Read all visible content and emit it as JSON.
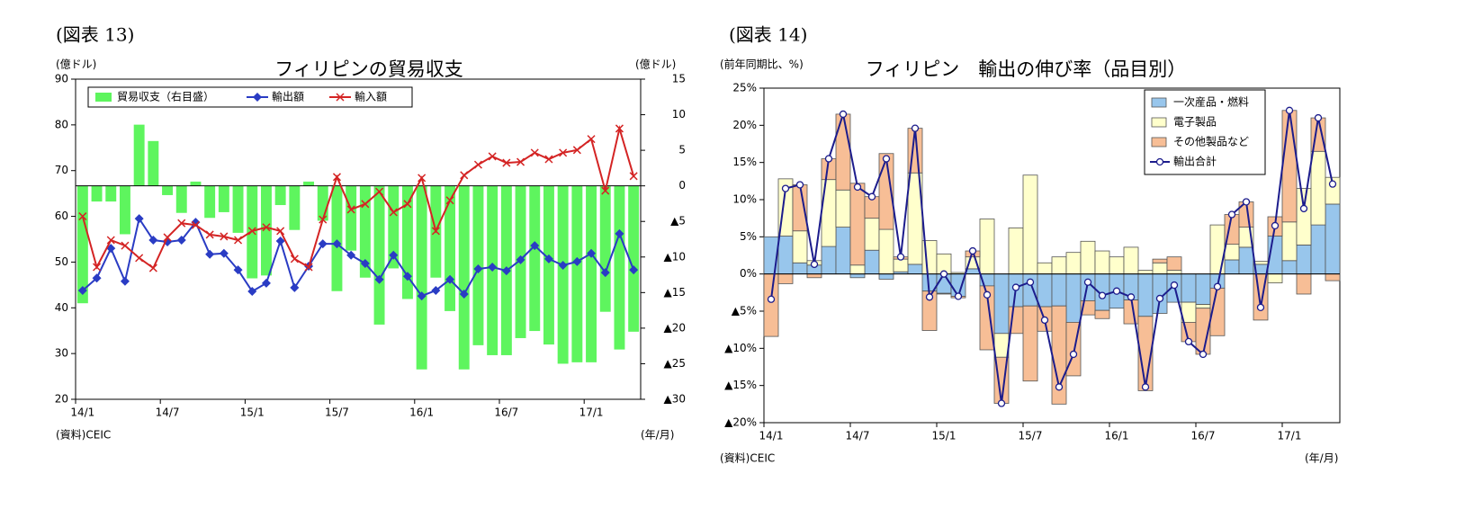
{
  "chart_data": [
    {
      "type": "combo",
      "figure_label": "(図表 13)",
      "title": "フィリピンの貿易収支",
      "y_unit": "(億ドル)",
      "y2_unit": "(億ドル)",
      "x_unit": "(年/月)",
      "source": "(資料)CEIC",
      "categories": [
        "14/1",
        null,
        null,
        null,
        null,
        null,
        "14/7",
        null,
        null,
        null,
        null,
        null,
        "15/1",
        null,
        null,
        null,
        null,
        null,
        "15/7",
        null,
        null,
        null,
        null,
        null,
        "16/1",
        null,
        null,
        null,
        null,
        null,
        "16/7",
        null,
        null,
        null,
        null,
        null,
        "17/1",
        null,
        null,
        null
      ],
      "ylim": [
        20,
        90
      ],
      "yticks": [
        20,
        30,
        40,
        50,
        60,
        70,
        80,
        90
      ],
      "y2lim": [
        -30,
        15
      ],
      "y2ticks": [
        {
          "value": -30,
          "label": "▲30"
        },
        {
          "value": -25,
          "label": "▲25"
        },
        {
          "value": -20,
          "label": "▲20"
        },
        {
          "value": -15,
          "label": "▲15"
        },
        {
          "value": -10,
          "label": "▲10"
        },
        {
          "value": -5,
          "label": "▲5"
        },
        0,
        5,
        10,
        15
      ],
      "legend": "top-left",
      "series": [
        {
          "name": "貿易収支（右目盛）",
          "kind": "bar",
          "axis": "y2",
          "color": "#5ef55e",
          "values": [
            -16.5,
            -2.2,
            -2.2,
            -6.8,
            8.6,
            6.3,
            -1.3,
            -3.8,
            0.6,
            -4.5,
            -3.7,
            -6.6,
            -13,
            -12.6,
            -2.7,
            -6.2,
            0.6,
            -4.9,
            -14.8,
            -9.1,
            -12.9,
            -19.5,
            -11.6,
            -15.9,
            -25.8,
            -12.9,
            -17.6,
            -25.8,
            -22.4,
            -23.8,
            -23.8,
            -21.4,
            -20.4,
            -22.3,
            -25,
            -24.8,
            -24.8,
            -17.7,
            -23,
            -20.5
          ]
        },
        {
          "name": "輸出額",
          "kind": "line",
          "marker": "diamond",
          "color": "#2a3cc4",
          "values": [
            43.8,
            46.5,
            53,
            45.8,
            59.5,
            54.8,
            54.4,
            54.8,
            58.7,
            51.7,
            51.9,
            48.3,
            43.6,
            45.4,
            54.6,
            44.4,
            49.1,
            54,
            54,
            51.5,
            49.7,
            46.2,
            51.5,
            46.9,
            42.6,
            43.8,
            46.2,
            43,
            48.5,
            48.9,
            48.1,
            50.5,
            53.6,
            50.7,
            49.3,
            50.1,
            51.9,
            47.7,
            56.2,
            48.3
          ]
        },
        {
          "name": "輸入額",
          "kind": "line",
          "marker": "x",
          "color": "#d42424",
          "values": [
            60,
            48.9,
            54.8,
            53.6,
            50.9,
            48.7,
            55.4,
            58.5,
            58.1,
            56,
            55.6,
            54.8,
            56.8,
            57.6,
            56.8,
            50.7,
            48.9,
            59.3,
            68.6,
            61.5,
            62.7,
            65.4,
            60.9,
            62.7,
            68.4,
            56.8,
            63.5,
            69,
            71.3,
            73.1,
            71.7,
            71.9,
            73.9,
            72.5,
            73.9,
            74.5,
            76.9,
            65.6,
            79.2,
            68.8
          ]
        }
      ]
    },
    {
      "type": "stacked_bar_line",
      "figure_label": "(図表 14)",
      "title": "フィリピン　輸出の伸び率（品目別）",
      "y_unit": "(前年同期比、%)",
      "x_unit": "(年/月)",
      "source": "(資料)CEIC",
      "categories": [
        "14/1",
        null,
        null,
        null,
        null,
        null,
        "14/7",
        null,
        null,
        null,
        null,
        null,
        "15/1",
        null,
        null,
        null,
        null,
        null,
        "15/7",
        null,
        null,
        null,
        null,
        null,
        "16/1",
        null,
        null,
        null,
        null,
        null,
        "16/7",
        null,
        null,
        null,
        null,
        null,
        "17/1",
        null,
        null,
        null
      ],
      "ylim": [
        -20,
        25
      ],
      "yticks": [
        {
          "value": -20,
          "label": "▲20%"
        },
        {
          "value": -15,
          "label": "▲15%"
        },
        {
          "value": -10,
          "label": "▲10%"
        },
        {
          "value": -5,
          "label": "▲5%"
        },
        {
          "value": 0,
          "label": "0%"
        },
        {
          "value": 5,
          "label": "5%"
        },
        {
          "value": 10,
          "label": "10%"
        },
        {
          "value": 15,
          "label": "15%"
        },
        {
          "value": 20,
          "label": "20%"
        },
        {
          "value": 25,
          "label": "25%"
        }
      ],
      "legend": "top-right",
      "series": [
        {
          "name": "一次産品・燃料",
          "kind": "bar",
          "color": "#98c6ec",
          "values": [
            5,
            5.1,
            1.5,
            1.2,
            3.7,
            6.3,
            -0.5,
            3.2,
            -0.7,
            0.3,
            1.3,
            -2.3,
            -2.6,
            -3,
            0.7,
            -1.6,
            -8,
            -4.4,
            -4.3,
            -4.4,
            -4.3,
            -6.5,
            -3.6,
            -4.9,
            -4.6,
            -3.5,
            -5.7,
            -5.3,
            -3.8,
            -3.8,
            -4.1,
            -1.9,
            1.9,
            3.6,
            1.3,
            5.1,
            1.8,
            3.9,
            6.6,
            9.4
          ]
        },
        {
          "name": "電子製品",
          "kind": "bar",
          "color": "#ffffcc",
          "values": [
            0,
            7.7,
            4.3,
            0.6,
            9,
            5,
            1.2,
            4.3,
            6,
            1.7,
            12.3,
            4.5,
            2.7,
            0.2,
            1.6,
            7.4,
            -3.2,
            6.2,
            13.3,
            1.5,
            2.3,
            2.9,
            4.4,
            3.1,
            2.3,
            3.6,
            0.5,
            1.5,
            0.5,
            -2.7,
            -0.5,
            6.6,
            2.1,
            2.7,
            0.4,
            -1.2,
            5.2,
            7.6,
            9.9,
            3.6
          ]
        },
        {
          "name": "その他製品など",
          "kind": "bar",
          "color": "#f7be96",
          "values": [
            -8.4,
            -1.3,
            6.2,
            -0.5,
            2.8,
            10.2,
            11,
            2.9,
            10.2,
            0.3,
            6,
            -5.3,
            -0.1,
            -0.2,
            0.8,
            -8.6,
            -6.2,
            -3.6,
            -10.1,
            -3.3,
            -13.2,
            -7.2,
            -1.9,
            -1.1,
            0,
            -3.2,
            -10,
            0.5,
            1.8,
            -2.6,
            -6.2,
            -6.4,
            4,
            3.4,
            -6.2,
            2.6,
            15,
            -2.7,
            4.5,
            -0.9
          ]
        },
        {
          "name": "輸出合計",
          "kind": "line",
          "marker": "circle",
          "color": "#1c1c8c",
          "values": [
            -3.4,
            11.5,
            12,
            1.3,
            15.5,
            21.5,
            11.7,
            10.4,
            15.5,
            2.3,
            19.6,
            -3.1,
            0,
            -3,
            3.1,
            -2.8,
            -17.4,
            -1.8,
            -1.1,
            -6.2,
            -15.2,
            -10.8,
            -1.1,
            -2.9,
            -2.3,
            -3.1,
            -15.2,
            -3.3,
            -1.5,
            -9.1,
            -10.8,
            -1.7,
            8,
            9.7,
            -4.5,
            6.5,
            22,
            8.8,
            21,
            12.1
          ]
        }
      ]
    }
  ]
}
